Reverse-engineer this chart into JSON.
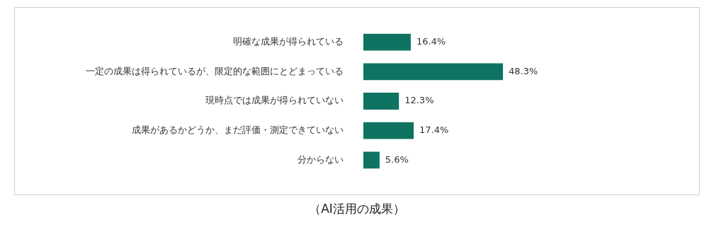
{
  "chart_data": {
    "type": "bar",
    "orientation": "horizontal",
    "title": "（AI活用の成果）",
    "categories": [
      "明確な成果が得られている",
      "一定の成果は得られているが、限定的な範囲にとどまっている",
      "現時点では成果が得られていない",
      "成果があるかどうか、まだ評価・測定できていない",
      "分からない"
    ],
    "values": [
      16.4,
      48.3,
      12.3,
      17.4,
      5.6
    ],
    "value_labels": [
      "16.4%",
      "48.3%",
      "12.3%",
      "17.4%",
      "5.6%"
    ],
    "color": "#0e7360",
    "grid": false,
    "legend": false
  }
}
